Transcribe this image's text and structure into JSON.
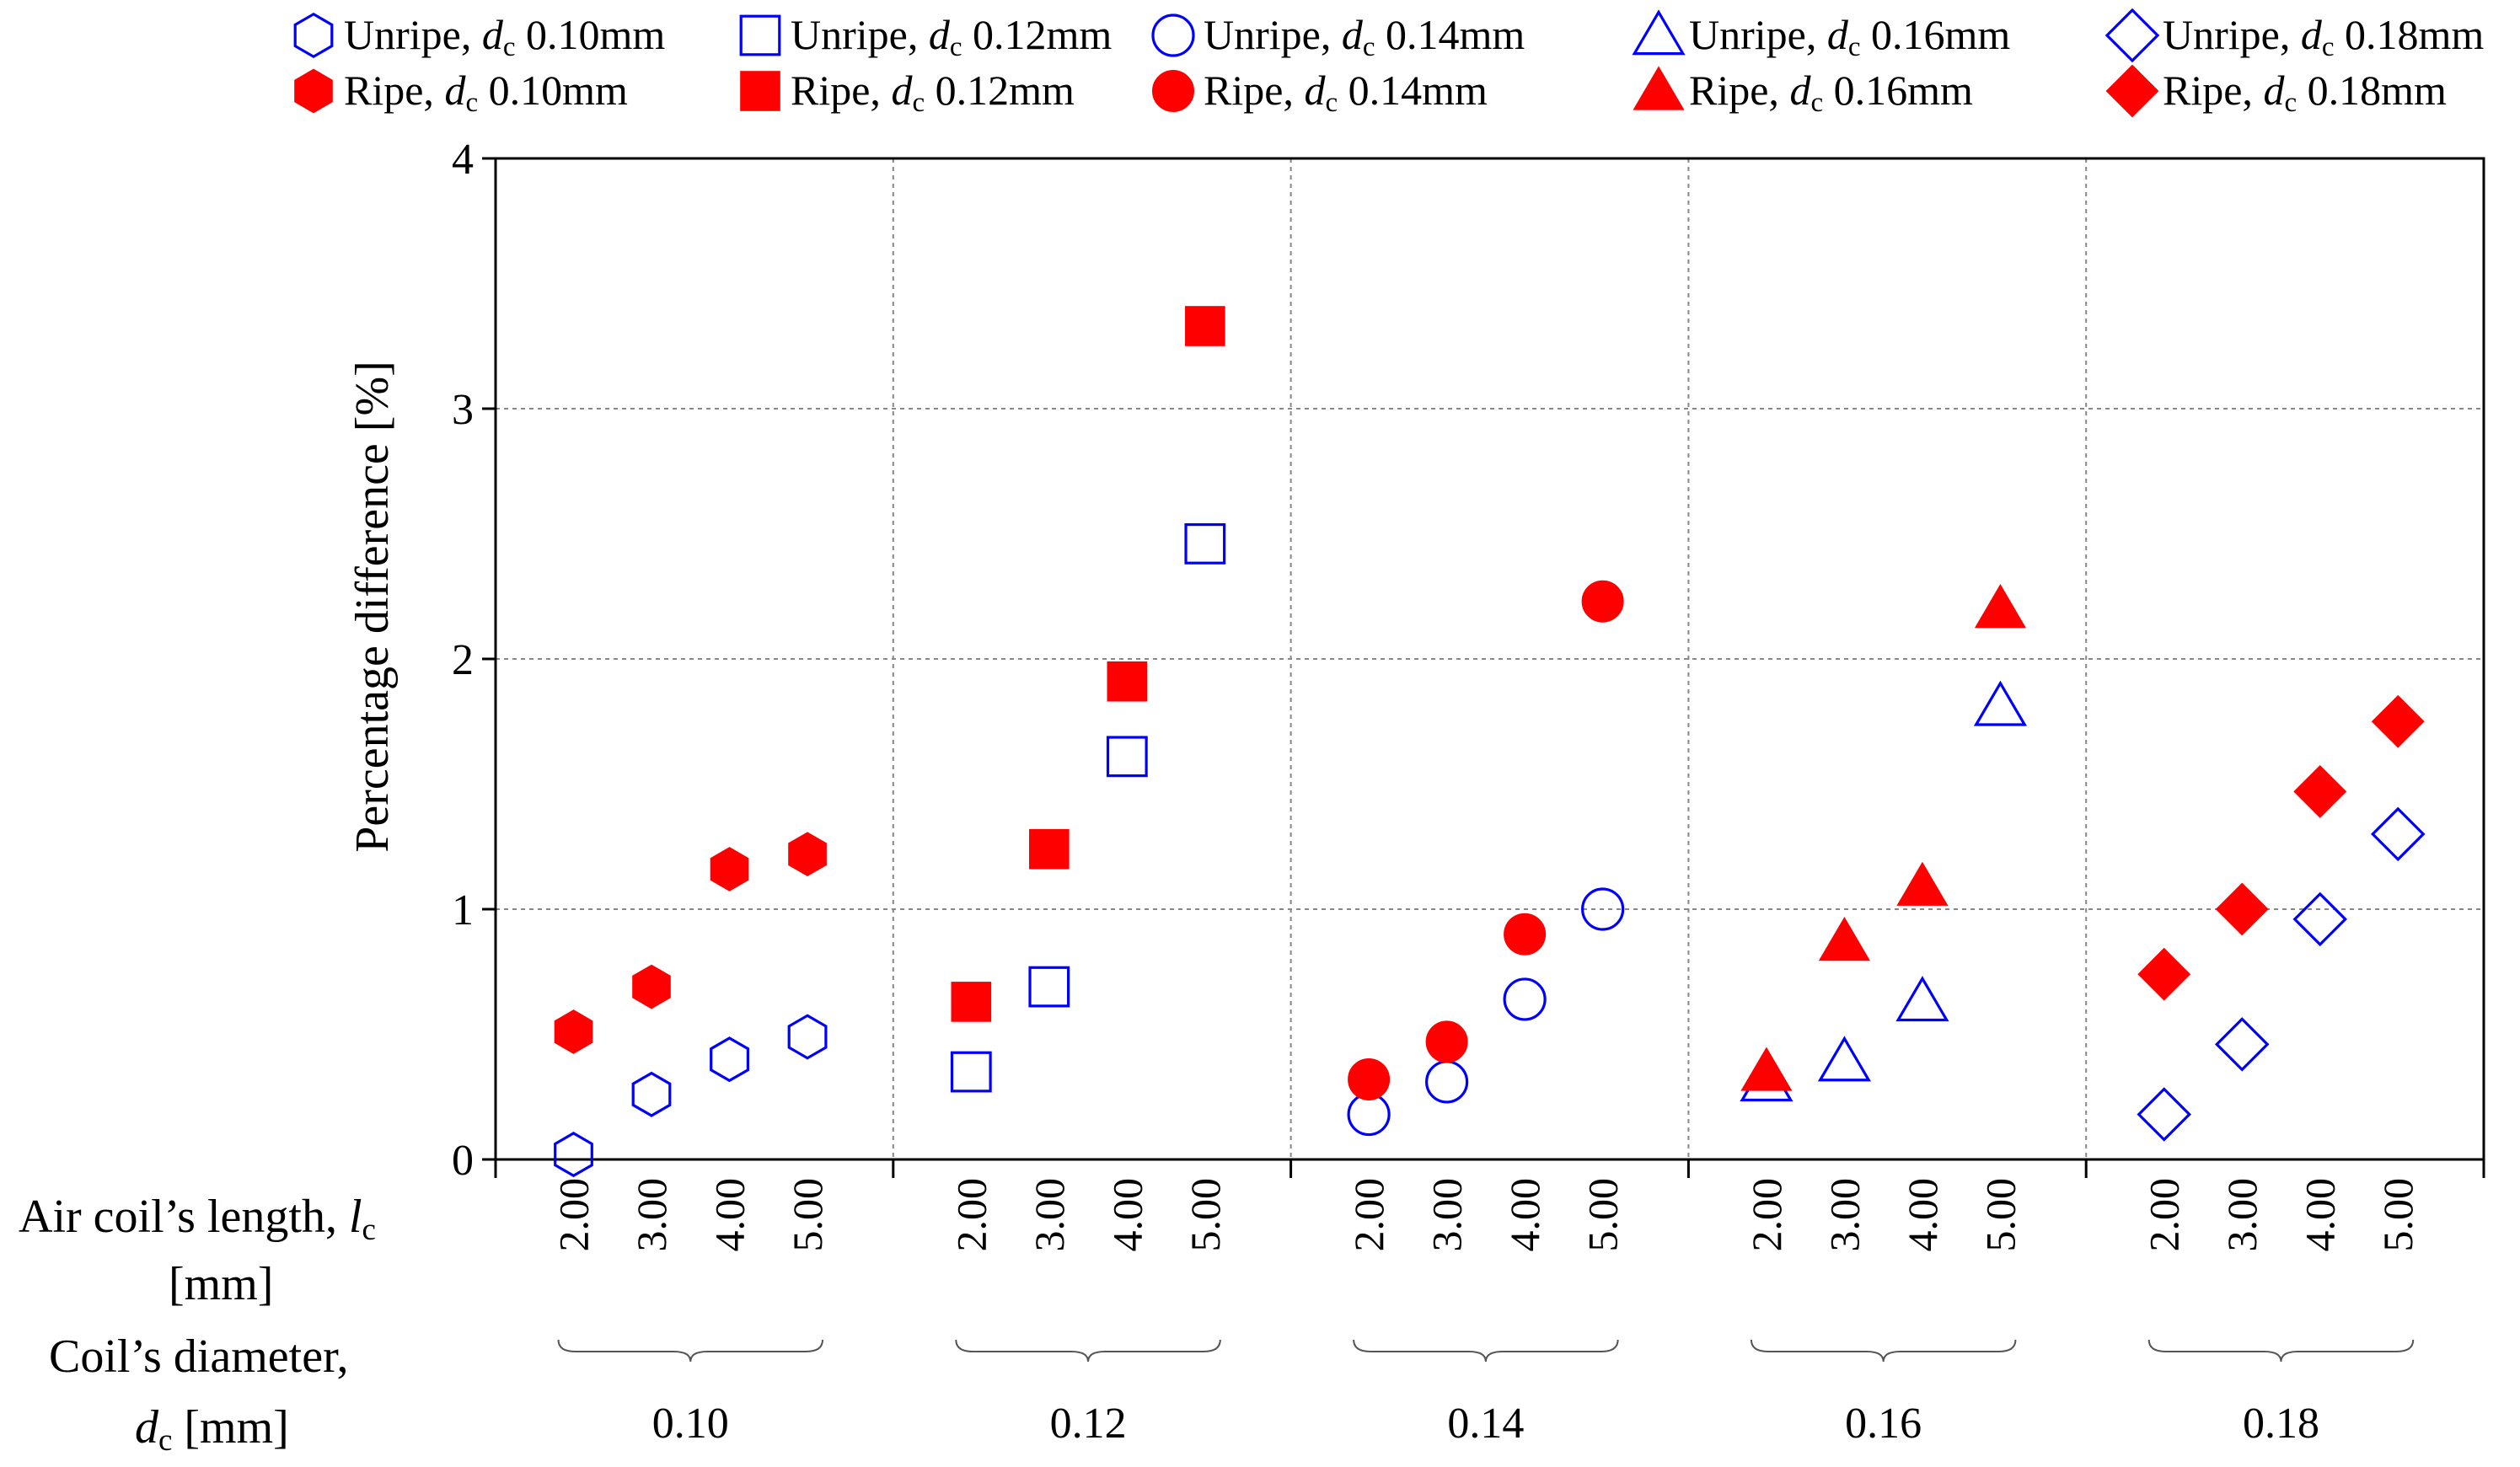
{
  "chart_data": {
    "type": "scatter",
    "title": "",
    "ylabel": "Percentage difference [%]",
    "ylim": [
      0,
      4
    ],
    "yticks": [
      "0",
      "1",
      "2",
      "3",
      "4"
    ],
    "x_row_label": {
      "line1": "Air coil’s length, ",
      "sym": "l",
      "sub": "c",
      "line2": "[mm]"
    },
    "group_row_label": {
      "line1": "Coil’s diameter,",
      "sym": "d",
      "sub": "c",
      "unit": " [mm]"
    },
    "lengths": [
      "2.00",
      "3.00",
      "4.00",
      "5.00"
    ],
    "groups": [
      "0.10",
      "0.12",
      "0.14",
      "0.16",
      "0.18"
    ],
    "grid": true,
    "legend_position": "top",
    "series": [
      {
        "name": "Unripe, dc 0.10mm",
        "prefix": "Unripe, ",
        "sym": "d",
        "sub": "c",
        "suffix": " 0.10mm",
        "group": 0,
        "marker": "hexagon",
        "filled": false,
        "color": "#0000ff",
        "values": [
          0.02,
          0.26,
          0.4,
          0.49
        ]
      },
      {
        "name": "Unripe, dc 0.12mm",
        "prefix": "Unripe, ",
        "sym": "d",
        "sub": "c",
        "suffix": " 0.12mm",
        "group": 1,
        "marker": "square",
        "filled": false,
        "color": "#0000ff",
        "values": [
          0.35,
          0.69,
          1.61,
          2.46
        ]
      },
      {
        "name": "Unripe, dc 0.14mm",
        "prefix": "Unripe, ",
        "sym": "d",
        "sub": "c",
        "suffix": " 0.14mm",
        "group": 2,
        "marker": "circle",
        "filled": false,
        "color": "#0000ff",
        "values": [
          0.18,
          0.31,
          0.64,
          1.0
        ]
      },
      {
        "name": "Unripe, dc 0.16mm",
        "prefix": "Unripe, ",
        "sym": "d",
        "sub": "c",
        "suffix": " 0.16mm",
        "group": 3,
        "marker": "triangle",
        "filled": false,
        "color": "#0000ff",
        "values": [
          0.31,
          0.39,
          0.63,
          1.81
        ]
      },
      {
        "name": "Unripe, dc 0.18mm",
        "prefix": "Unripe, ",
        "sym": "d",
        "sub": "c",
        "suffix": " 0.18mm",
        "group": 4,
        "marker": "diamond",
        "filled": false,
        "color": "#0000ff",
        "values": [
          0.18,
          0.46,
          0.96,
          1.3
        ]
      },
      {
        "name": "Ripe, dc 0.10mm",
        "prefix": "Ripe, ",
        "sym": "d",
        "sub": "c",
        "suffix": " 0.10mm",
        "group": 0,
        "marker": "hexagon",
        "filled": true,
        "color": "#ff0000",
        "values": [
          0.51,
          0.69,
          1.16,
          1.22
        ]
      },
      {
        "name": "Ripe, dc 0.12mm",
        "prefix": "Ripe, ",
        "sym": "d",
        "sub": "c",
        "suffix": " 0.12mm",
        "group": 1,
        "marker": "square",
        "filled": true,
        "color": "#ff0000",
        "values": [
          0.63,
          1.24,
          1.91,
          3.33
        ]
      },
      {
        "name": "Ripe, dc 0.14mm",
        "prefix": "Ripe, ",
        "sym": "d",
        "sub": "c",
        "suffix": " 0.14mm",
        "group": 2,
        "marker": "circle",
        "filled": true,
        "color": "#ff0000",
        "values": [
          0.32,
          0.47,
          0.9,
          2.23
        ]
      },
      {
        "name": "Ripe, dc 0.16mm",
        "prefix": "Ripe, ",
        "sym": "d",
        "sub": "c",
        "suffix": " 0.16mm",
        "group": 3,
        "marker": "triangle",
        "filled": true,
        "color": "#ff0000",
        "values": [
          0.35,
          0.87,
          1.09,
          2.2
        ]
      },
      {
        "name": "Ripe, dc 0.18mm",
        "prefix": "Ripe, ",
        "sym": "d",
        "sub": "c",
        "suffix": " 0.18mm",
        "group": 4,
        "marker": "diamond",
        "filled": true,
        "color": "#ff0000",
        "values": [
          0.74,
          1.0,
          1.47,
          1.75
        ]
      }
    ]
  }
}
